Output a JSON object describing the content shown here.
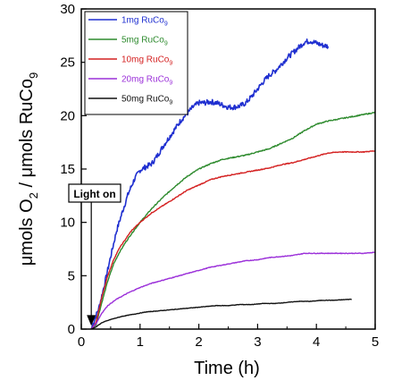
{
  "chart_data": {
    "type": "line",
    "title": "",
    "xlabel": "Time (h)",
    "ylabel_parts": [
      "μmols O",
      "2",
      " / μmols RuCo",
      "9"
    ],
    "xlim": [
      0,
      5
    ],
    "ylim": [
      0,
      30
    ],
    "x_ticks": [
      0,
      1,
      2,
      3,
      4,
      5
    ],
    "y_ticks": [
      0,
      5,
      10,
      15,
      20,
      25,
      30
    ],
    "grid": false,
    "legend_placement": "top-left",
    "annotation": {
      "text": "Light on",
      "x": 0.17,
      "y": 0.3
    },
    "series": [
      {
        "name_main": "1mg RuCo",
        "name_sub": "9",
        "color": "#1f2fd0",
        "noise": 0.25,
        "points": [
          [
            0.17,
            0
          ],
          [
            0.2,
            0.5
          ],
          [
            0.3,
            2
          ],
          [
            0.4,
            4.3
          ],
          [
            0.5,
            6.8
          ],
          [
            0.6,
            9.2
          ],
          [
            0.7,
            11
          ],
          [
            0.8,
            12.7
          ],
          [
            0.9,
            14
          ],
          [
            1.0,
            14.9
          ],
          [
            1.1,
            15.2
          ],
          [
            1.2,
            15.5
          ],
          [
            1.3,
            16.3
          ],
          [
            1.4,
            17.2
          ],
          [
            1.5,
            18
          ],
          [
            1.6,
            18.8
          ],
          [
            1.7,
            19.6
          ],
          [
            1.8,
            20.2
          ],
          [
            1.9,
            20.8
          ],
          [
            2.0,
            21.2
          ],
          [
            2.1,
            21.2
          ],
          [
            2.2,
            21.3
          ],
          [
            2.3,
            21.2
          ],
          [
            2.4,
            21
          ],
          [
            2.5,
            20.8
          ],
          [
            2.6,
            20.8
          ],
          [
            2.7,
            20.9
          ],
          [
            2.8,
            21.2
          ],
          [
            2.9,
            21.8
          ],
          [
            3.0,
            22.5
          ],
          [
            3.1,
            23.2
          ],
          [
            3.2,
            23.8
          ],
          [
            3.3,
            24.2
          ],
          [
            3.4,
            24.8
          ],
          [
            3.5,
            25.4
          ],
          [
            3.6,
            25.9
          ],
          [
            3.7,
            26.4
          ],
          [
            3.8,
            26.9
          ],
          [
            3.9,
            27
          ],
          [
            4.0,
            26.8
          ],
          [
            4.1,
            26.6
          ],
          [
            4.2,
            26.5
          ]
        ]
      },
      {
        "name_main": "5mg RuCo",
        "name_sub": "9",
        "color": "#2e8b2e",
        "noise": 0.05,
        "points": [
          [
            0.17,
            0
          ],
          [
            0.25,
            0.4
          ],
          [
            0.35,
            2.5
          ],
          [
            0.45,
            4.5
          ],
          [
            0.55,
            6.1
          ],
          [
            0.65,
            7.2
          ],
          [
            0.75,
            8.1
          ],
          [
            0.85,
            8.9
          ],
          [
            1.0,
            10
          ],
          [
            1.2,
            11.3
          ],
          [
            1.4,
            12.4
          ],
          [
            1.6,
            13.4
          ],
          [
            1.8,
            14.3
          ],
          [
            2.0,
            15
          ],
          [
            2.2,
            15.5
          ],
          [
            2.4,
            15.9
          ],
          [
            2.6,
            16.1
          ],
          [
            2.8,
            16.3
          ],
          [
            3.0,
            16.6
          ],
          [
            3.2,
            16.9
          ],
          [
            3.4,
            17.4
          ],
          [
            3.6,
            17.9
          ],
          [
            3.8,
            18.6
          ],
          [
            4.0,
            19.2
          ],
          [
            4.2,
            19.5
          ],
          [
            4.4,
            19.7
          ],
          [
            4.6,
            19.9
          ],
          [
            4.8,
            20.1
          ],
          [
            5.0,
            20.3
          ]
        ]
      },
      {
        "name_main": "10mg RuCo",
        "name_sub": "9",
        "color": "#d42020",
        "noise": 0.04,
        "points": [
          [
            0.17,
            0
          ],
          [
            0.25,
            0.6
          ],
          [
            0.35,
            3
          ],
          [
            0.45,
            5
          ],
          [
            0.55,
            6.5
          ],
          [
            0.65,
            7.6
          ],
          [
            0.75,
            8.4
          ],
          [
            0.85,
            9.2
          ],
          [
            1.0,
            10
          ],
          [
            1.2,
            10.9
          ],
          [
            1.4,
            11.6
          ],
          [
            1.6,
            12.3
          ],
          [
            1.8,
            13
          ],
          [
            2.0,
            13.5
          ],
          [
            2.2,
            14
          ],
          [
            2.4,
            14.3
          ],
          [
            2.6,
            14.5
          ],
          [
            2.8,
            14.7
          ],
          [
            3.0,
            14.9
          ],
          [
            3.2,
            15.1
          ],
          [
            3.4,
            15.4
          ],
          [
            3.6,
            15.6
          ],
          [
            3.8,
            15.9
          ],
          [
            4.0,
            16.2
          ],
          [
            4.2,
            16.5
          ],
          [
            4.4,
            16.6
          ],
          [
            4.6,
            16.6
          ],
          [
            4.8,
            16.6
          ],
          [
            5.0,
            16.7
          ]
        ]
      },
      {
        "name_main": "20mg RuCo",
        "name_sub": "9",
        "color": "#9b30d9",
        "noise": 0.03,
        "points": [
          [
            0.17,
            0
          ],
          [
            0.25,
            0.5
          ],
          [
            0.35,
            1.5
          ],
          [
            0.45,
            2.2
          ],
          [
            0.6,
            2.8
          ],
          [
            0.8,
            3.4
          ],
          [
            1.0,
            3.9
          ],
          [
            1.2,
            4.3
          ],
          [
            1.4,
            4.6
          ],
          [
            1.6,
            4.9
          ],
          [
            1.8,
            5.2
          ],
          [
            2.0,
            5.5
          ],
          [
            2.2,
            5.8
          ],
          [
            2.4,
            6
          ],
          [
            2.6,
            6.2
          ],
          [
            2.8,
            6.4
          ],
          [
            3.0,
            6.5
          ],
          [
            3.2,
            6.7
          ],
          [
            3.4,
            6.8
          ],
          [
            3.6,
            6.9
          ],
          [
            3.8,
            7.1
          ],
          [
            4.0,
            7.1
          ],
          [
            4.2,
            7.1
          ],
          [
            4.4,
            7.1
          ],
          [
            4.6,
            7.1
          ],
          [
            4.8,
            7.1
          ],
          [
            5.0,
            7.2
          ]
        ]
      },
      {
        "name_main": "50mg RuCo",
        "name_sub": "9",
        "color": "#111111",
        "noise": 0.02,
        "points": [
          [
            0.17,
            0
          ],
          [
            0.25,
            0.2
          ],
          [
            0.35,
            0.6
          ],
          [
            0.5,
            0.9
          ],
          [
            0.7,
            1.2
          ],
          [
            0.9,
            1.4
          ],
          [
            1.1,
            1.6
          ],
          [
            1.3,
            1.7
          ],
          [
            1.5,
            1.8
          ],
          [
            1.7,
            1.9
          ],
          [
            1.9,
            2
          ],
          [
            2.1,
            2.1
          ],
          [
            2.3,
            2.2
          ],
          [
            2.5,
            2.2
          ],
          [
            2.7,
            2.3
          ],
          [
            2.9,
            2.3
          ],
          [
            3.1,
            2.4
          ],
          [
            3.3,
            2.4
          ],
          [
            3.5,
            2.5
          ],
          [
            3.7,
            2.6
          ],
          [
            3.9,
            2.6
          ],
          [
            4.1,
            2.7
          ],
          [
            4.3,
            2.7
          ],
          [
            4.6,
            2.8
          ]
        ]
      }
    ]
  }
}
